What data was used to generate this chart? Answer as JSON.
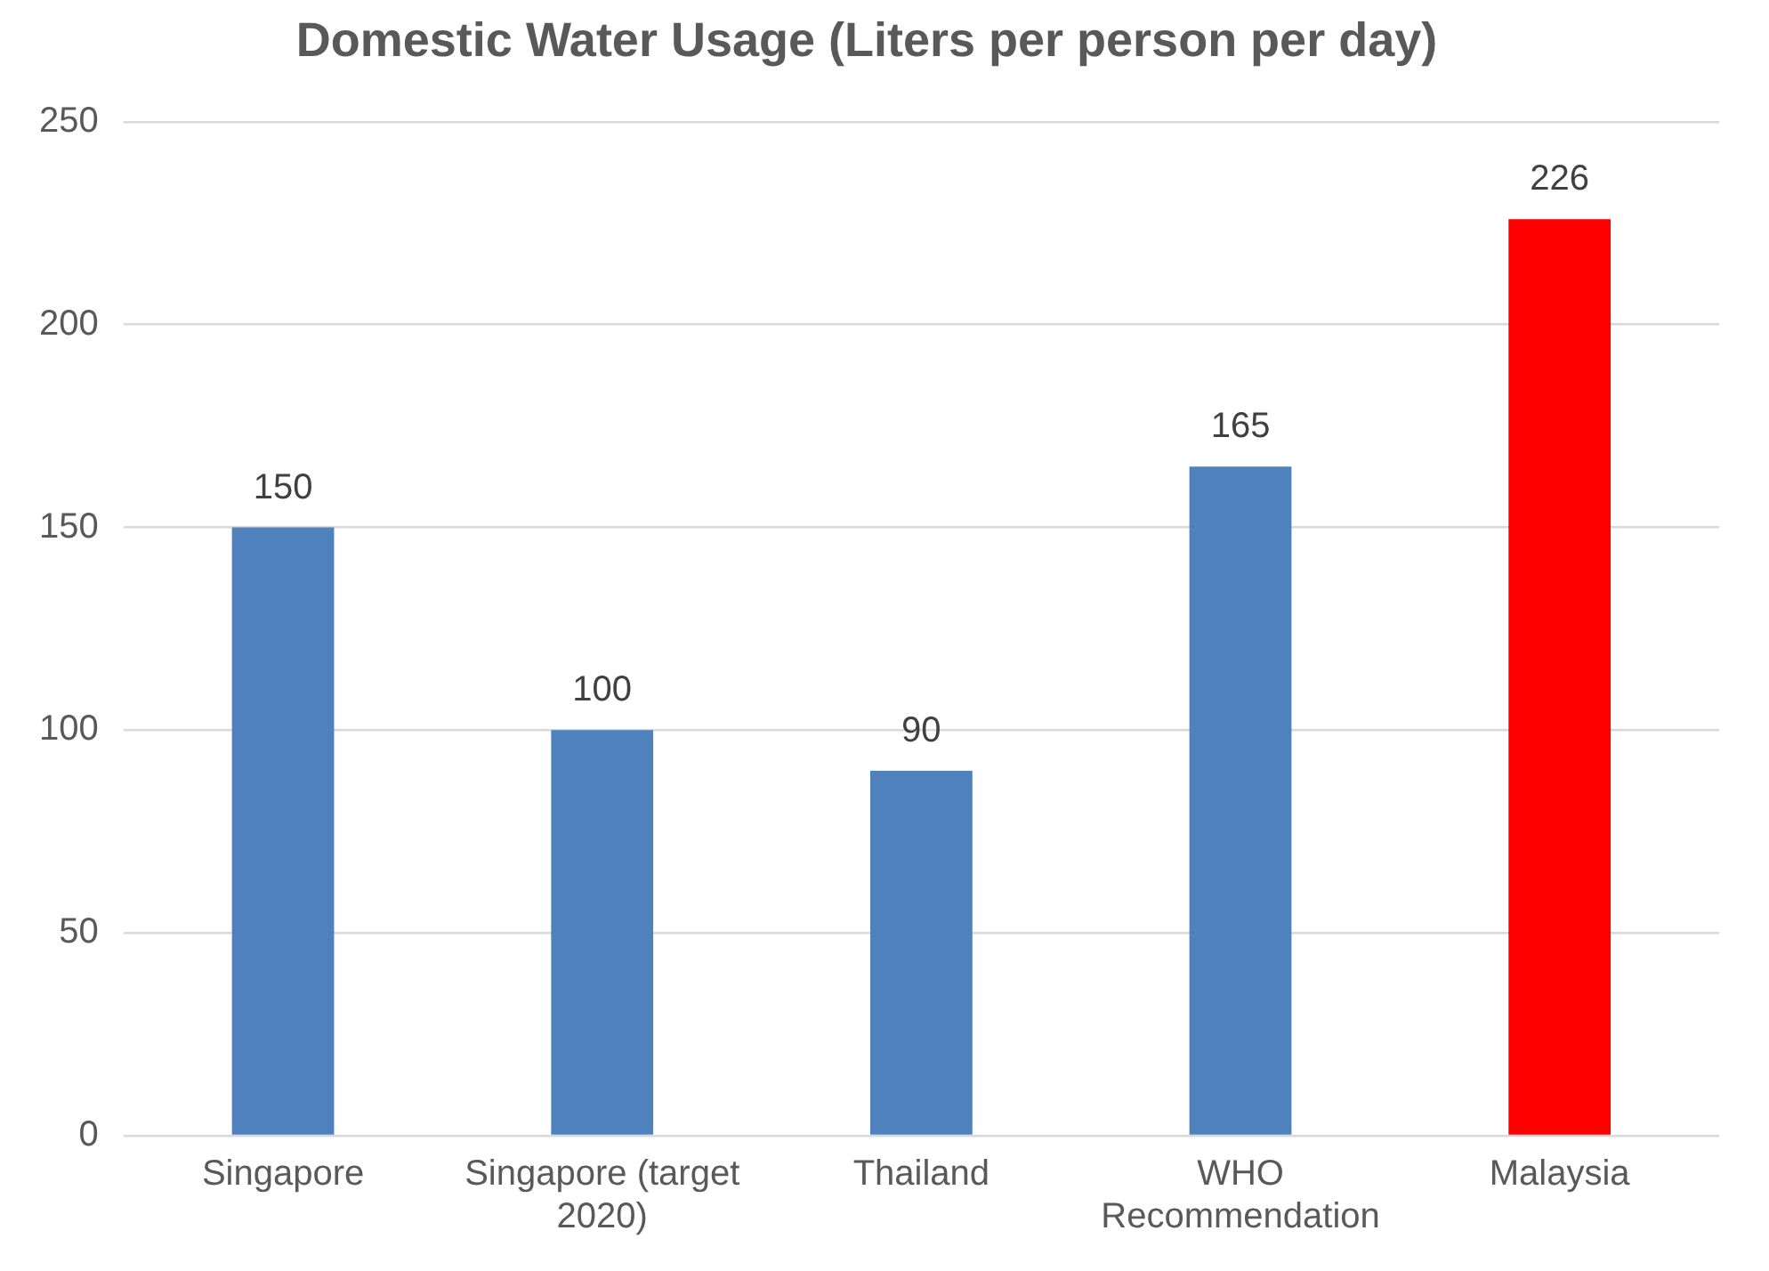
{
  "chart_data": {
    "type": "bar",
    "title": "Domestic Water Usage (Liters per person per day)",
    "categories": [
      "Singapore",
      "Singapore (target 2020)",
      "Thailand",
      "WHO Recommendation",
      "Malaysia"
    ],
    "values": [
      150,
      100,
      90,
      165,
      226
    ],
    "colors": [
      "#4f81bd",
      "#4f81bd",
      "#4f81bd",
      "#4f81bd",
      "#ff0000"
    ],
    "ylim": [
      0,
      250
    ],
    "yticks": [
      0,
      50,
      100,
      150,
      200,
      250
    ],
    "grid": "y",
    "data_labels": true
  }
}
